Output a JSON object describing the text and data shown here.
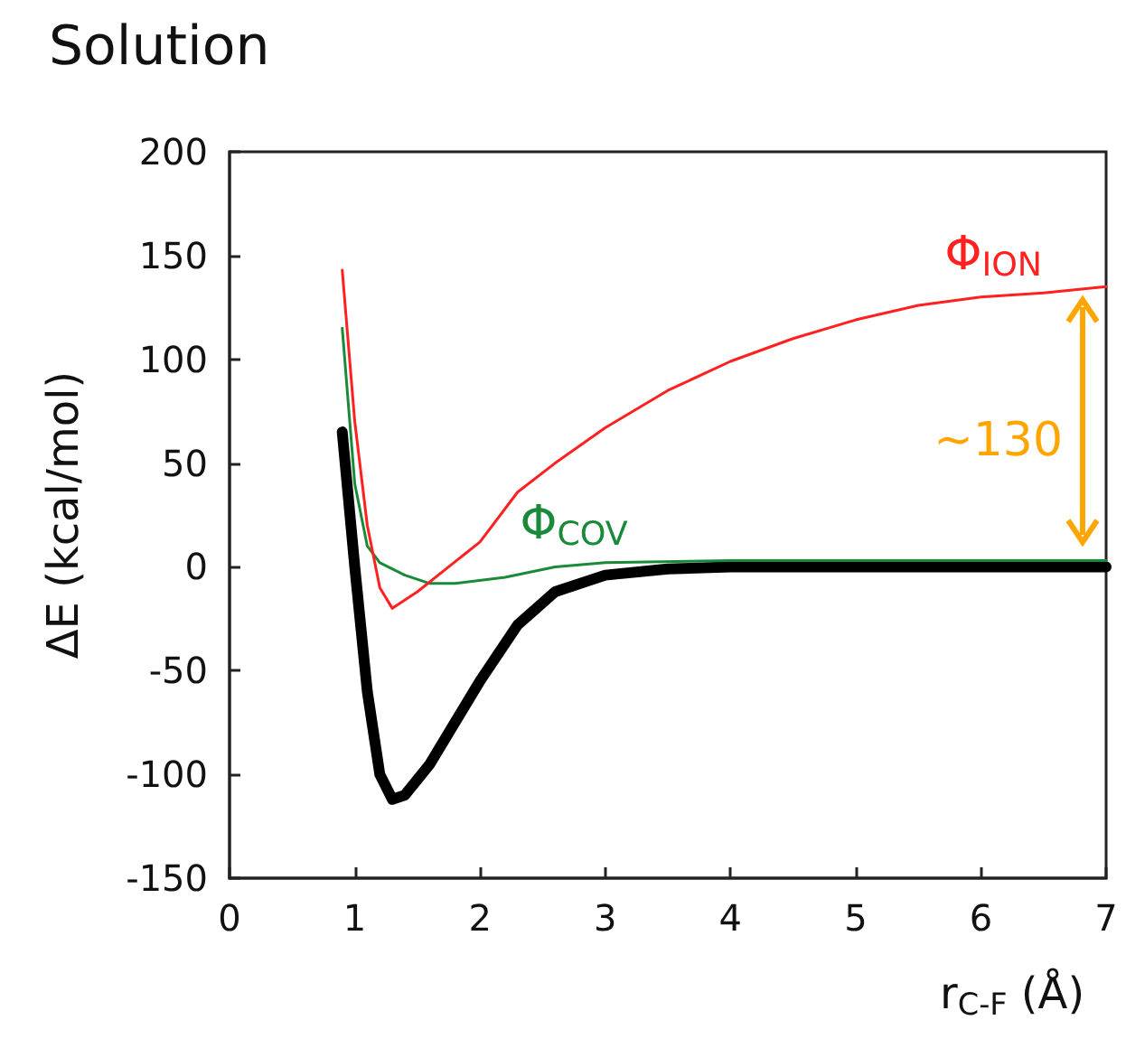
{
  "chart_data": {
    "type": "line",
    "title": "Solution",
    "xlabel": "r$_{C-F}$ (Å)",
    "ylabel": "ΔE (kcal/mol)",
    "xlim": [
      0,
      7
    ],
    "ylim": [
      -150,
      200
    ],
    "xticks": [
      0,
      1,
      2,
      3,
      4,
      5,
      6,
      7
    ],
    "yticks": [
      -150,
      -100,
      -50,
      0,
      50,
      100,
      150,
      200
    ],
    "grid": false,
    "series": [
      {
        "name": "Φ$_{ION}$",
        "color": "#ff2020",
        "x": [
          0.9,
          1.0,
          1.1,
          1.2,
          1.3,
          1.5,
          1.75,
          2.0,
          2.3,
          2.6,
          3.0,
          3.5,
          4.0,
          4.5,
          5.0,
          5.5,
          6.0,
          6.5,
          7.0
        ],
        "values": [
          143,
          70,
          20,
          -10,
          -20,
          -12,
          0,
          12,
          36,
          50,
          67,
          85,
          99,
          110,
          119,
          126,
          130,
          132,
          135
        ]
      },
      {
        "name": "Φ$_{COV}$",
        "color": "#1a8a3a",
        "x": [
          0.9,
          1.0,
          1.1,
          1.2,
          1.4,
          1.6,
          1.8,
          2.2,
          2.6,
          3.0,
          4.0,
          5.0,
          6.0,
          7.0
        ],
        "values": [
          115,
          40,
          10,
          2,
          -4,
          -8,
          -8,
          -5,
          0,
          2,
          3,
          3,
          3,
          3
        ]
      },
      {
        "color": "#000000",
        "x": [
          0.9,
          1.0,
          1.1,
          1.2,
          1.3,
          1.4,
          1.6,
          1.8,
          2.0,
          2.3,
          2.6,
          3.0,
          3.5,
          4.0,
          5.0,
          6.0,
          7.0
        ],
        "values": [
          65,
          0,
          -60,
          -100,
          -112,
          -110,
          -95,
          -75,
          -55,
          -28,
          -12,
          -4,
          -1,
          0,
          0,
          0,
          0
        ]
      }
    ],
    "annotations": [
      "~130"
    ]
  }
}
